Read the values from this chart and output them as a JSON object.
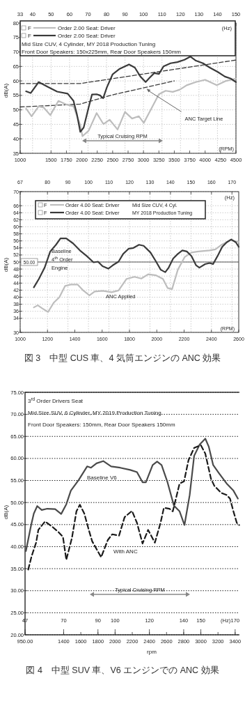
{
  "chart_data": [
    {
      "type": "line",
      "ylabel": "dB(A)",
      "xlim": [
        1000,
        4500
      ],
      "xticks": [
        1000,
        1500,
        1750,
        2000,
        2250,
        2500,
        2750,
        3000,
        3250,
        3500,
        3750,
        4000,
        4250,
        4500
      ],
      "ylim": [
        35,
        80
      ],
      "yticks": [
        35,
        40,
        45,
        50,
        55,
        60,
        65,
        70,
        75,
        80
      ],
      "x2lim": [
        33.3,
        150
      ],
      "x2ticks": [
        {
          "value": 33.3,
          "label": "33"
        },
        40,
        50,
        60,
        70,
        80,
        90,
        100,
        110,
        120,
        130,
        140,
        150
      ],
      "grid": true,
      "legend": "top left",
      "series": [
        {
          "color": "#3a3a3a",
          "line_style": "dashed",
          "x": [
            1000,
            1975,
            4500
          ],
          "values": [
            59.1,
            59.1,
            67.2
          ]
        },
        {
          "color": "#3a3a3a",
          "line_style": "dashed",
          "x": [
            1000,
            1975,
            2500,
            3500
          ],
          "values": [
            51.0,
            52.0,
            55.2,
            60.0
          ]
        },
        {
          "name": "Order 2.00 Seat: Driver",
          "color": "#bdbdbd",
          "x": [
            1095,
            1185,
            1300,
            1380,
            1490,
            1620,
            1755,
            1865,
            1975,
            2010,
            2110,
            2240,
            2350,
            2450,
            2580,
            2700,
            2815,
            2925,
            3005,
            3100,
            3250,
            3360,
            3475,
            3590,
            3700,
            3850,
            4000,
            4190,
            4340,
            4500
          ],
          "values": [
            50.5,
            47.8,
            51.2,
            50.8,
            48.2,
            53.1,
            51.8,
            51.2,
            44.7,
            40.9,
            42.8,
            48.9,
            45.1,
            46.6,
            43.2,
            49.3,
            47.0,
            47.8,
            45.5,
            49.3,
            55.4,
            56.6,
            56.2,
            57.0,
            58.5,
            59.6,
            60.4,
            58.5,
            60.0,
            60.8
          ]
        },
        {
          "name": "Order 2.00 Seat: Driver",
          "color": "#3a3a3a",
          "x": [
            1095,
            1170,
            1300,
            1450,
            1600,
            1770,
            1865,
            1920,
            1975,
            2030,
            2110,
            2165,
            2240,
            2295,
            2345,
            2405,
            2500,
            2615,
            2765,
            2860,
            2950,
            3035,
            3100,
            3175,
            3250,
            3325,
            3440,
            3550,
            3665,
            3760,
            3850,
            3965,
            4075,
            4205,
            4320,
            4415,
            4500
          ],
          "values": [
            56.4,
            55.8,
            59.6,
            57.9,
            56.3,
            55.6,
            53.1,
            48.5,
            42.4,
            43.9,
            50.8,
            55.3,
            55.4,
            55.0,
            54.0,
            57.7,
            62.3,
            64.2,
            65.7,
            64.6,
            61.5,
            59.6,
            61.1,
            62.7,
            62.4,
            65.0,
            66.1,
            66.5,
            67.3,
            68.4,
            67.0,
            66.1,
            64.6,
            63.1,
            61.5,
            60.8,
            59.6
          ]
        }
      ],
      "annotations": [
        "(Hz)",
        "(RPM)",
        "Mid Size CUV, 4 Cylinder, MY 2018 Production Tuning",
        "Front Door Speakers: 150x225mm,    Rear Door Speakers 150mm",
        "F",
        "F",
        {
          "text": "ANC Target Line",
          "x": 3050,
          "y": 57.3
        },
        "Typical Cruising RPM"
      ]
    },
    {
      "type": "line",
      "ylabel": "dB(A)",
      "xlim": [
        1000,
        2600
      ],
      "xticks": [
        1000,
        1200,
        1400,
        1600,
        1800,
        2000,
        2200,
        2400,
        2600
      ],
      "ylim": [
        30,
        70
      ],
      "yticks": [
        30,
        34,
        36,
        38,
        40,
        42,
        44,
        46,
        48,
        50,
        52,
        54,
        56,
        58,
        60,
        62,
        64,
        66,
        70
      ],
      "x2lim": [
        66.7,
        173.3
      ],
      "x2ticks": [
        {
          "value": 66.7,
          "label": "67"
        },
        80,
        90,
        100,
        110,
        120,
        130,
        140,
        150,
        160,
        170
      ],
      "grid": true,
      "legend": "top left",
      "ref_lines": [
        {
          "axis": "y",
          "value": 50,
          "label": "50.00",
          "color": "#555555"
        }
      ],
      "series": [
        {
          "name": "Order 4.00 Seat: Driver",
          "color": "#bdbdbd",
          "x": [
            1100,
            1129,
            1162,
            1204,
            1245,
            1287,
            1329,
            1370,
            1420,
            1462,
            1507,
            1545,
            1604,
            1670,
            1720,
            1779,
            1837,
            1887,
            1937,
            1995,
            2045,
            2079,
            2112,
            2154,
            2204,
            2254,
            2304,
            2387,
            2429,
            2470,
            2537,
            2600
          ],
          "values": [
            37.1,
            37.7,
            36.8,
            35.8,
            38.4,
            40.0,
            43.2,
            43.6,
            43.6,
            41.9,
            40.5,
            41.6,
            41.8,
            41.4,
            41.9,
            45.2,
            45.8,
            45.3,
            46.5,
            46.2,
            45.2,
            42.6,
            42.3,
            47.8,
            51.4,
            52.7,
            53.0,
            53.3,
            53.6,
            54.8,
            56.2,
            55.7
          ]
        },
        {
          "name": "Order 4.00 Seat: Driver",
          "color": "#3a3a3a",
          "x": [
            1100,
            1137,
            1179,
            1220,
            1262,
            1295,
            1337,
            1387,
            1437,
            1487,
            1537,
            1570,
            1603,
            1645,
            1679,
            1720,
            1754,
            1795,
            1829,
            1870,
            1904,
            1954,
            1995,
            2029,
            2062,
            2087,
            2120,
            2154,
            2187,
            2220,
            2254,
            2287,
            2312,
            2354,
            2387,
            2412,
            2445,
            2479,
            2512,
            2545,
            2579,
            2600
          ],
          "values": [
            42.8,
            45.2,
            48.4,
            53.0,
            54.9,
            56.7,
            56.7,
            55.3,
            53.3,
            51.7,
            49.9,
            50.1,
            48.8,
            48.1,
            49.1,
            50.1,
            52.3,
            53.8,
            54.0,
            54.9,
            54.6,
            52.7,
            50.1,
            47.8,
            47.1,
            48.4,
            51.0,
            52.3,
            53.3,
            53.0,
            51.7,
            49.1,
            48.4,
            49.4,
            49.7,
            49.4,
            51.7,
            54.3,
            55.6,
            56.4,
            55.6,
            54.3
          ]
        }
      ],
      "annotations": [
        "(Hz)",
        "(RPM)",
        "Mid Size CUV, 4 Cyl.",
        "MY 2018 Production Tuning",
        "F",
        "F",
        "Baseline\n4$^{th}$ Order\nEngine",
        "ANC Applied",
        "図 3　中型 CUS 車、4 気筒エンジンの ANC 効果"
      ]
    },
    {
      "type": "line",
      "xlabel": "rpm",
      "ylabel": "dB(A)",
      "xlim": [
        950,
        3450
      ],
      "xticks": [
        {
          "value": 950,
          "label": "950.00"
        },
        1400,
        1600,
        1800,
        2000,
        2200,
        2400,
        2600,
        2800,
        3000,
        3200,
        3400
      ],
      "ylim": [
        20,
        75
      ],
      "yticks": [
        {
          "value": 20,
          "label": "20.00"
        },
        {
          "value": 25,
          "label": "25.00"
        },
        {
          "value": 30,
          "label": "30.00"
        },
        {
          "value": 35,
          "label": "35.00"
        },
        {
          "value": 40,
          "label": "40.00"
        },
        {
          "value": 45,
          "label": "45.00"
        },
        {
          "value": 50,
          "label": "50.00"
        },
        {
          "value": 55,
          "label": "55.00"
        },
        {
          "value": 60,
          "label": "60.00"
        },
        {
          "value": 65,
          "label": "65.00"
        },
        {
          "value": 70,
          "label": "70.00"
        },
        {
          "value": 75,
          "label": "75.00"
        }
      ],
      "x2lim": [
        47.5,
        172.5
      ],
      "x2ticks": [
        {
          "value": 47.5,
          "label": "47"
        },
        70,
        90,
        100,
        120,
        140,
        150,
        170
      ],
      "grid": "y",
      "series": [
        {
          "name": "Baseline V6",
          "color": "#4a4a4a",
          "x": [
            960,
            1021,
            1052,
            1092,
            1144,
            1209,
            1301,
            1371,
            1431,
            1484,
            1575,
            1674,
            1719,
            1784,
            1862,
            1954,
            2059,
            2176,
            2255,
            2320,
            2359,
            2438,
            2490,
            2542,
            2608,
            2686,
            2752,
            2809,
            2870,
            2922,
            2987,
            3052,
            3092,
            3144,
            3210,
            3301,
            3380,
            3432
          ],
          "values": [
            39.0,
            44.9,
            47.5,
            49.2,
            48.3,
            48.6,
            48.5,
            47.4,
            49.6,
            52.7,
            55.1,
            58.2,
            57.9,
            58.9,
            59.4,
            58.2,
            57.9,
            57.4,
            56.9,
            54.6,
            54.6,
            58.5,
            59.3,
            58.5,
            54.8,
            49.3,
            48.0,
            44.9,
            51.7,
            60.6,
            63.2,
            64.5,
            62.7,
            58.5,
            56.7,
            54.3,
            52.7,
            50.9
          ]
        },
        {
          "name": "With ANC",
          "color": "#1a1a1a",
          "line_style": "dashed",
          "x": [
            987,
            1026,
            1079,
            1105,
            1183,
            1262,
            1340,
            1392,
            1431,
            1497,
            1549,
            1589,
            1641,
            1693,
            1733,
            1837,
            1915,
            1967,
            2046,
            2111,
            2197,
            2255,
            2320,
            2385,
            2464,
            2530,
            2569,
            2634,
            2673,
            2752,
            2804,
            2856,
            2922,
            3000,
            3052,
            3118,
            3157,
            3236,
            3301,
            3340,
            3380,
            3419,
            3447
          ],
          "values": [
            34.8,
            37.8,
            40.9,
            43.8,
            45.7,
            44.6,
            43.3,
            42.2,
            37.0,
            42.0,
            48.0,
            49.5,
            47.5,
            43.8,
            41.2,
            37.6,
            41.5,
            42.8,
            42.5,
            46.7,
            48.1,
            45.4,
            40.7,
            43.8,
            40.9,
            45.4,
            48.8,
            48.6,
            48.0,
            54.3,
            54.8,
            59.6,
            62.4,
            63.0,
            61.1,
            55.4,
            53.8,
            52.2,
            51.7,
            50.9,
            48.0,
            45.4,
            44.9
          ]
        }
      ],
      "annotations": [
        "3$^{rd}$ Order Drivers Seat",
        "Mid Size SUV, 6 Cylinder, MY 2019 Production Tuning",
        "Front Door Speakers: 150mm,  Rear Door Speakers 150mm",
        "Typical Cruising RPM",
        "(Hz)",
        "図 4　中型 SUV 車、V6 エンジンでの ANC 効果"
      ]
    }
  ]
}
